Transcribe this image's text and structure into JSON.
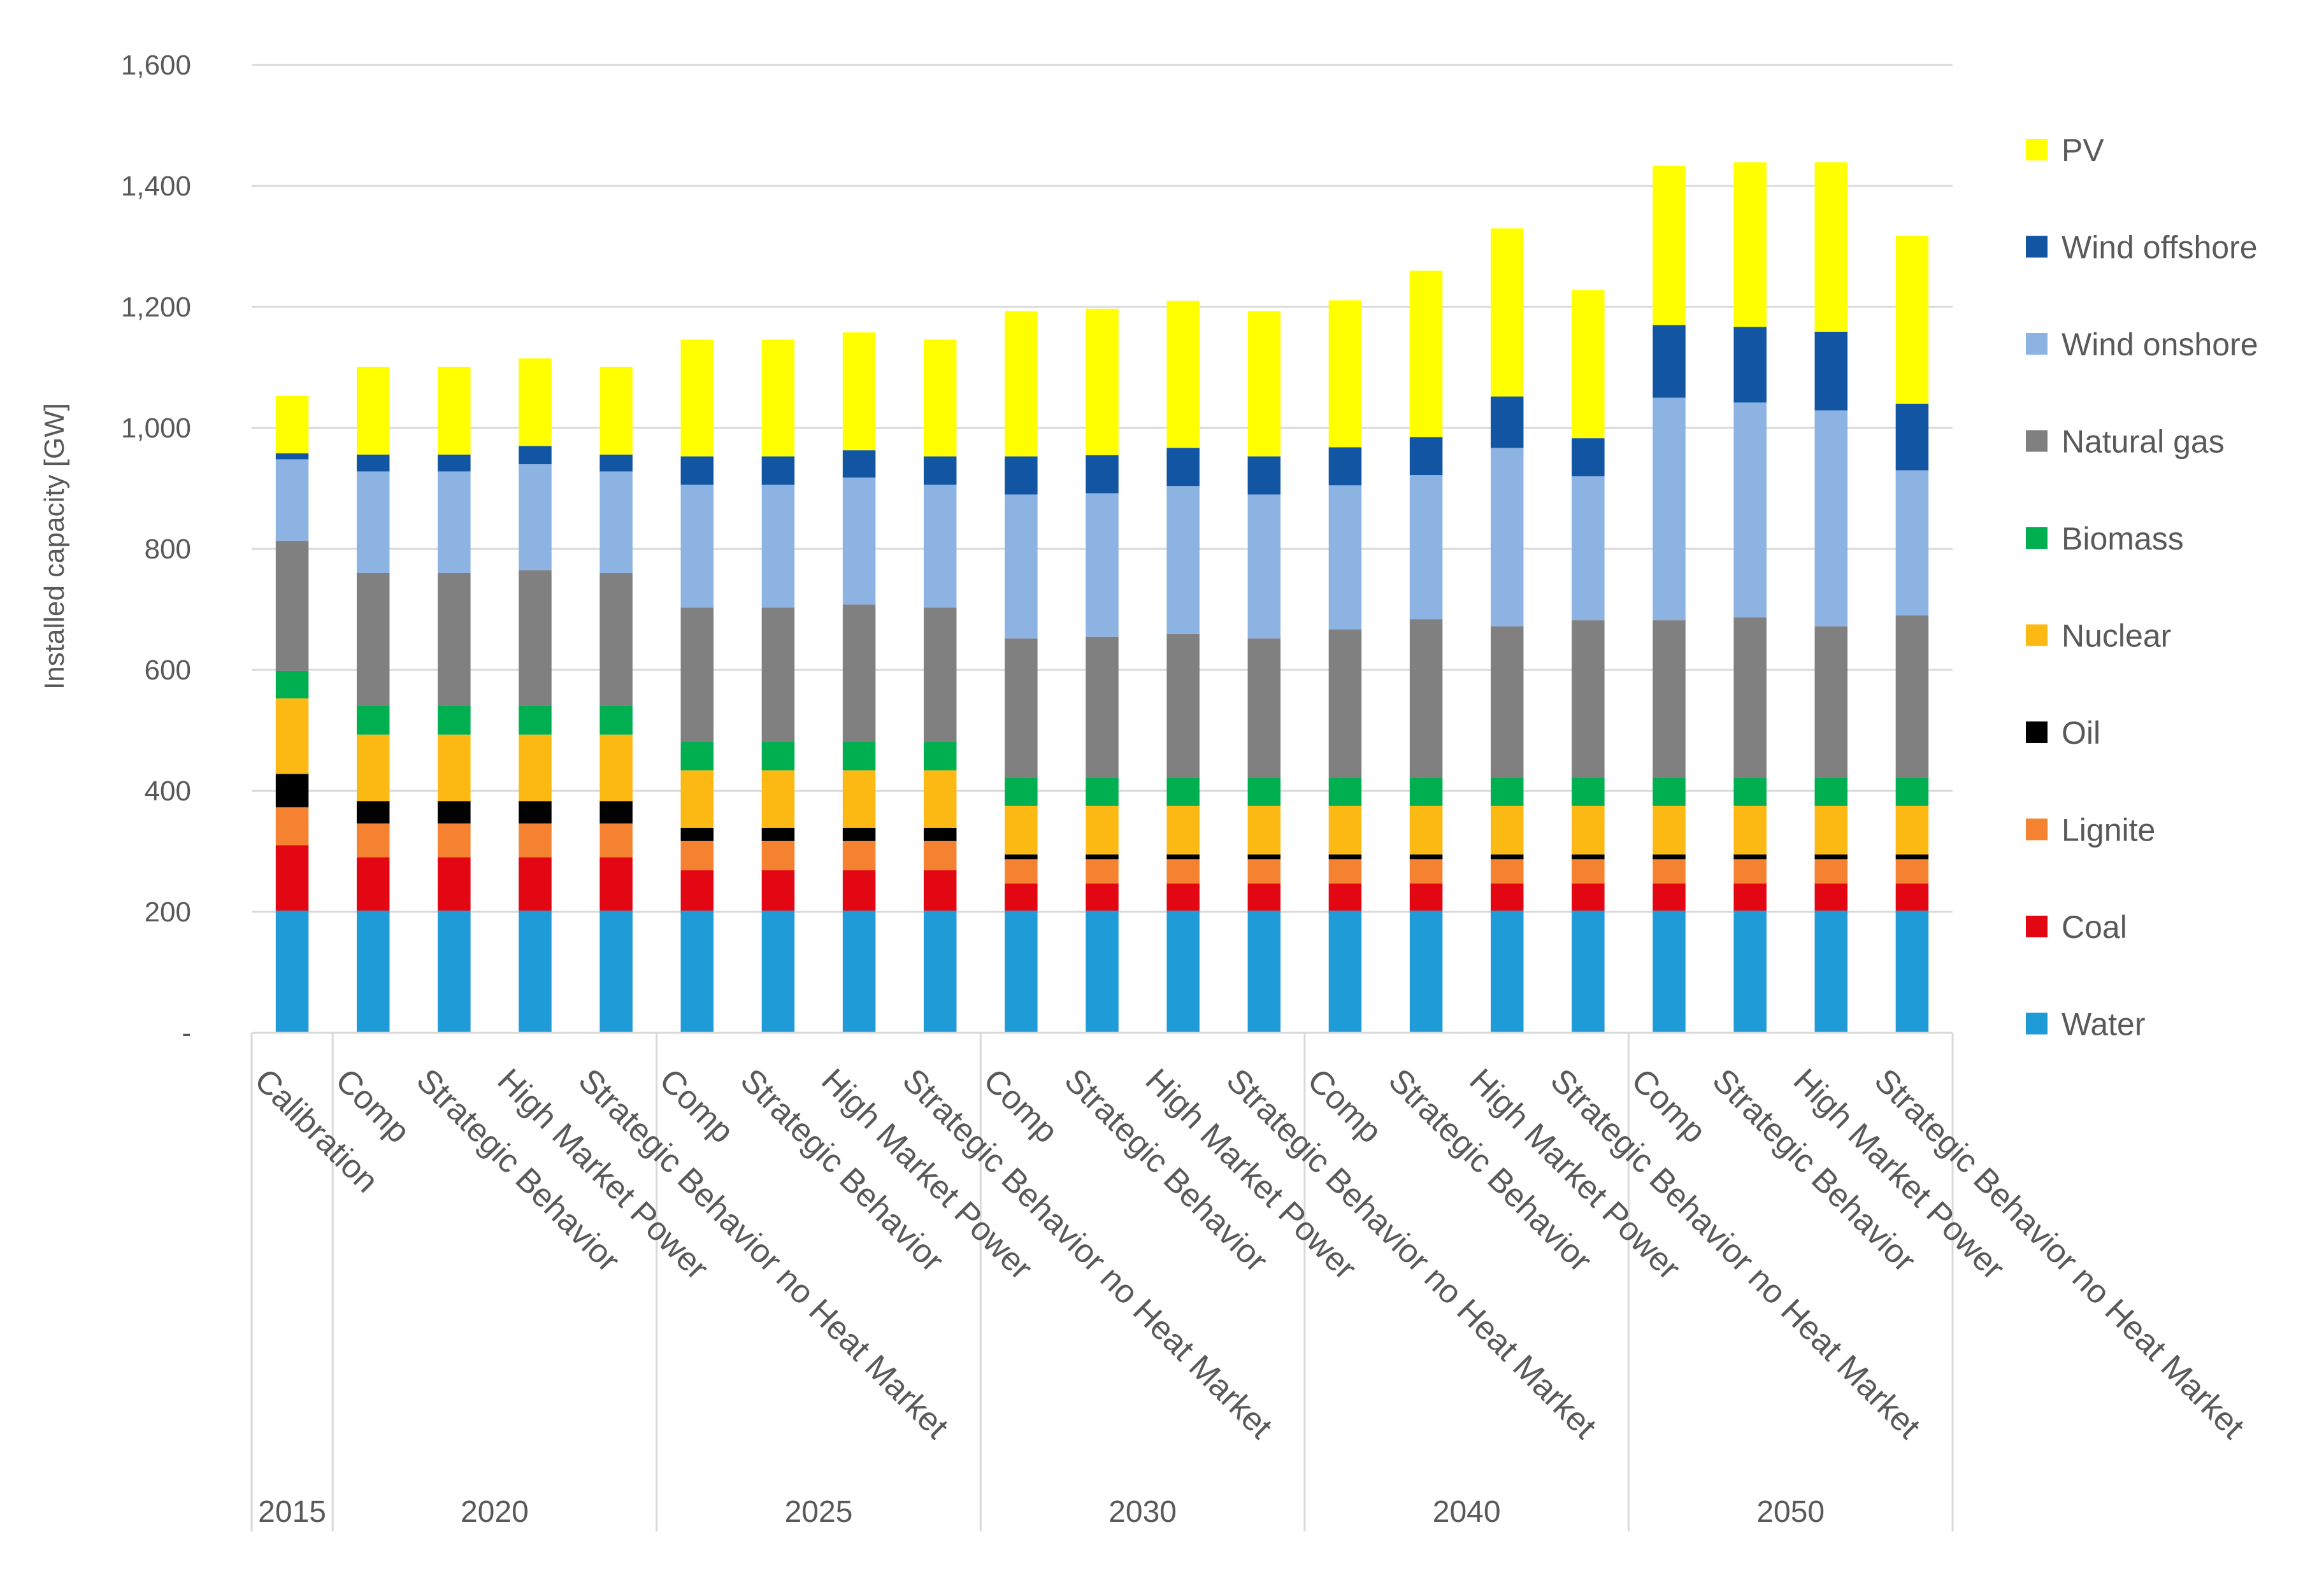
{
  "chart_data": {
    "type": "bar",
    "stacked": true,
    "title": "",
    "xlabel": "",
    "ylabel": "Installed capacity [GW]",
    "ylim": [
      0,
      1600
    ],
    "yticks": [
      0,
      200,
      400,
      600,
      800,
      1000,
      1200,
      1400,
      1600
    ],
    "ytick_labels": [
      "-",
      "200",
      "400",
      "600",
      "800",
      "1,000",
      "1,200",
      "1,400",
      "1,600"
    ],
    "grid": true,
    "legend_position": "right",
    "groups": [
      {
        "label": "2015",
        "size": 1
      },
      {
        "label": "2020",
        "size": 4
      },
      {
        "label": "2025",
        "size": 4
      },
      {
        "label": "2030",
        "size": 4
      },
      {
        "label": "2040",
        "size": 4
      },
      {
        "label": "2050",
        "size": 4
      }
    ],
    "categories": [
      "Calibration",
      "Comp",
      "Strategic Behavior",
      "High Market Power",
      "Strategic Behavior no Heat Market",
      "Comp",
      "Strategic Behavior",
      "High Market Power",
      "Strategic Behavior no Heat Market",
      "Comp",
      "Strategic Behavior",
      "High Market Power",
      "Strategic Behavior no Heat Market",
      "Comp",
      "Strategic Behavior",
      "High Market Power",
      "Strategic Behavior no Heat Market",
      "Comp",
      "Strategic Behavior",
      "High Market Power",
      "Strategic Behavior no Heat Market"
    ],
    "series": [
      {
        "name": "Water",
        "color": "#1f9bd7",
        "values": [
          202,
          202,
          202,
          202,
          202,
          202,
          202,
          202,
          202,
          202,
          202,
          202,
          202,
          202,
          202,
          202,
          202,
          202,
          202,
          202,
          202
        ]
      },
      {
        "name": "Coal",
        "color": "#e30613",
        "values": [
          108,
          88,
          88,
          88,
          88,
          67,
          67,
          67,
          67,
          45,
          45,
          45,
          45,
          45,
          45,
          45,
          45,
          45,
          45,
          45,
          45
        ]
      },
      {
        "name": "Lignite",
        "color": "#f58230",
        "values": [
          63,
          56,
          56,
          56,
          56,
          48,
          48,
          48,
          48,
          40,
          40,
          40,
          40,
          40,
          40,
          40,
          40,
          40,
          40,
          40,
          40
        ]
      },
      {
        "name": "Oil",
        "color": "#000000",
        "values": [
          55,
          37,
          37,
          37,
          37,
          22,
          22,
          22,
          22,
          8,
          8,
          8,
          8,
          8,
          8,
          8,
          8,
          8,
          8,
          8,
          8
        ]
      },
      {
        "name": "Nuclear",
        "color": "#fdb913",
        "values": [
          125,
          110,
          110,
          110,
          110,
          95,
          95,
          95,
          95,
          80,
          80,
          80,
          80,
          80,
          80,
          80,
          80,
          80,
          80,
          80,
          80
        ]
      },
      {
        "name": "Biomass",
        "color": "#00b050",
        "values": [
          45,
          47,
          47,
          47,
          47,
          47,
          47,
          47,
          47,
          47,
          47,
          47,
          47,
          47,
          47,
          47,
          47,
          47,
          47,
          47,
          47
        ]
      },
      {
        "name": "Natural gas",
        "color": "#808080",
        "values": [
          215,
          220,
          220,
          225,
          220,
          222,
          222,
          227,
          222,
          230,
          233,
          237,
          230,
          245,
          262,
          250,
          260,
          260,
          265,
          250,
          268
        ]
      },
      {
        "name": "Wind onshore",
        "color": "#8db3e2",
        "values": [
          135,
          168,
          168,
          175,
          168,
          203,
          203,
          210,
          203,
          238,
          237,
          245,
          238,
          238,
          238,
          295,
          238,
          368,
          355,
          357,
          240
        ]
      },
      {
        "name": "Wind offshore",
        "color": "#1155a3",
        "values": [
          10,
          28,
          28,
          30,
          28,
          47,
          47,
          45,
          47,
          63,
          63,
          63,
          63,
          63,
          63,
          85,
          63,
          120,
          125,
          130,
          110
        ]
      },
      {
        "name": "PV",
        "color": "#ffff00",
        "values": [
          95,
          145,
          145,
          145,
          145,
          193,
          193,
          195,
          193,
          240,
          242,
          243,
          240,
          243,
          275,
          278,
          245,
          263,
          272,
          280,
          277
        ]
      }
    ]
  }
}
